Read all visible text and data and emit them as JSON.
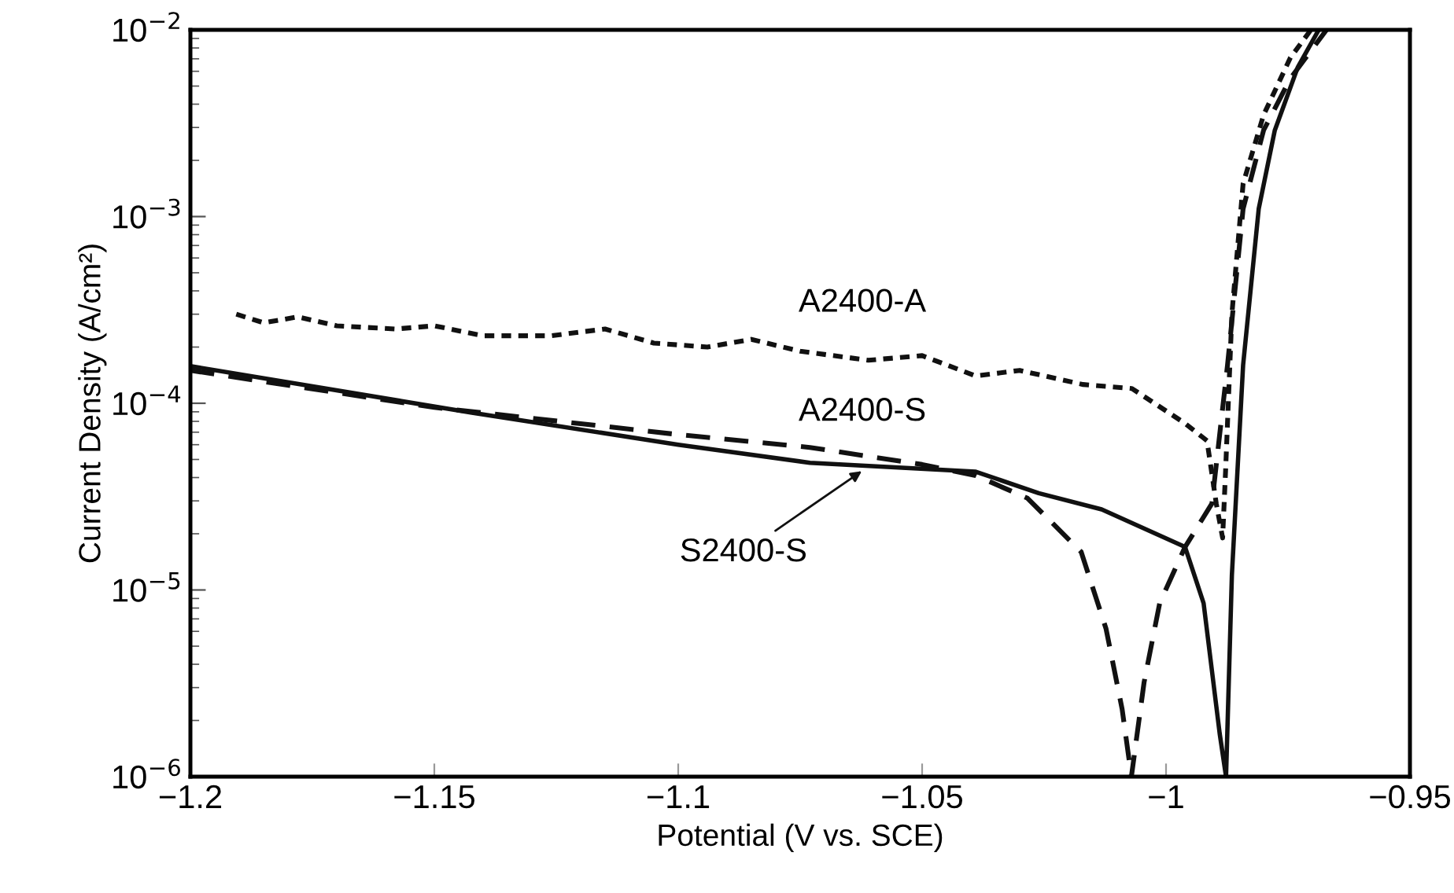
{
  "chart_data": {
    "type": "line",
    "xlabel": "Potential (V vs. SCE)",
    "ylabel": "Current Density (A/cm²)",
    "log": "y",
    "grid": false,
    "legend": false,
    "marker": "none",
    "xlim": [
      -1.2,
      -0.95
    ],
    "ylim": [
      1e-06,
      0.01
    ],
    "xticks": [
      {
        "value": -1.2,
        "label": "−1.2"
      },
      {
        "value": -1.15,
        "label": "−1.15"
      },
      {
        "value": -1.1,
        "label": "−1.1"
      },
      {
        "value": -1.05,
        "label": "−1.05"
      },
      {
        "value": -1.0,
        "label": "−1"
      },
      {
        "value": -0.95,
        "label": "−0.95"
      }
    ],
    "yticks": [
      {
        "value": 1e-06,
        "label": "10$^{−6}$"
      },
      {
        "value": 1e-05,
        "label": "10$^{−5}$"
      },
      {
        "value": 0.0001,
        "label": "10$^{−4}$"
      },
      {
        "value": 0.001,
        "label": "10$^{−3}$"
      },
      {
        "value": 0.01,
        "label": "10$^{−2}$"
      }
    ],
    "series": [
      {
        "color": "#111111",
        "line_style": "dotted",
        "x": [
          -1.1906,
          -1.185,
          -1.178,
          -1.17,
          -1.158,
          -1.15,
          -1.14,
          -1.126,
          -1.115,
          -1.105,
          -1.094,
          -1.085,
          -1.075,
          -1.061,
          -1.05,
          -1.039,
          -1.03,
          -1.017,
          -1.007,
          -0.9961,
          -0.9916,
          -0.9897,
          -0.9884,
          -0.9878,
          -0.9865,
          -0.9842,
          -0.98,
          -0.9745,
          -0.9703
        ],
        "values": [
          0.0003,
          0.00027,
          0.00029,
          0.00026,
          0.00025,
          0.00026,
          0.00023,
          0.00023,
          0.00025,
          0.00021,
          0.0002,
          0.00022,
          0.00019,
          0.00017,
          0.00018,
          0.00014,
          0.00015,
          0.000126,
          0.00012,
          7.8e-05,
          6.3e-05,
          2.9e-05,
          1.9e-05,
          4.3e-05,
          0.0003,
          0.0015,
          0.0035,
          0.0071,
          0.01
        ]
      },
      {
        "color": "#111111",
        "line_style": "dashed",
        "x": [
          -1.2,
          -1.15,
          -1.1,
          -1.073,
          -1.05,
          -1.039,
          -1.0284,
          -1.0174,
          -1.0123,
          -1.009,
          -1.0071,
          -1.0045,
          -1.0013,
          -0.9961,
          -0.9906,
          -0.9874,
          -0.9842,
          -0.98,
          -0.9745,
          -0.9671
        ],
        "values": [
          0.00015,
          9.5e-05,
          6.8e-05,
          5.8e-05,
          4.7e-05,
          4.1e-05,
          3.1e-05,
          1.6e-05,
          6.2e-06,
          2.3e-06,
          1e-06,
          3.2e-06,
          8.5e-06,
          1.7e-05,
          2.9e-05,
          0.00016,
          0.0011,
          0.0029,
          0.0055,
          0.01
        ]
      },
      {
        "color": "#111111",
        "line_style": "solid",
        "x": [
          -1.2,
          -1.1423,
          -1.1,
          -1.073,
          -1.039,
          -1.0261,
          -1.0132,
          -0.9961,
          -0.9923,
          -0.989,
          -0.9877,
          -0.9865,
          -0.9842,
          -0.981,
          -0.9777,
          -0.973,
          -0.9687
        ],
        "values": [
          0.000158,
          8.9e-05,
          6e-05,
          4.8e-05,
          4.3e-05,
          3.3e-05,
          2.7e-05,
          1.7e-05,
          8.5e-06,
          1.7e-06,
          1e-06,
          1.2e-05,
          0.00016,
          0.0011,
          0.0029,
          0.0063,
          0.01
        ]
      }
    ],
    "annotations": [
      "A2400-A",
      "A2400-S",
      {
        "text": "S2400-S",
        "x": -1.062,
        "y": 4.4e-05
      }
    ]
  }
}
